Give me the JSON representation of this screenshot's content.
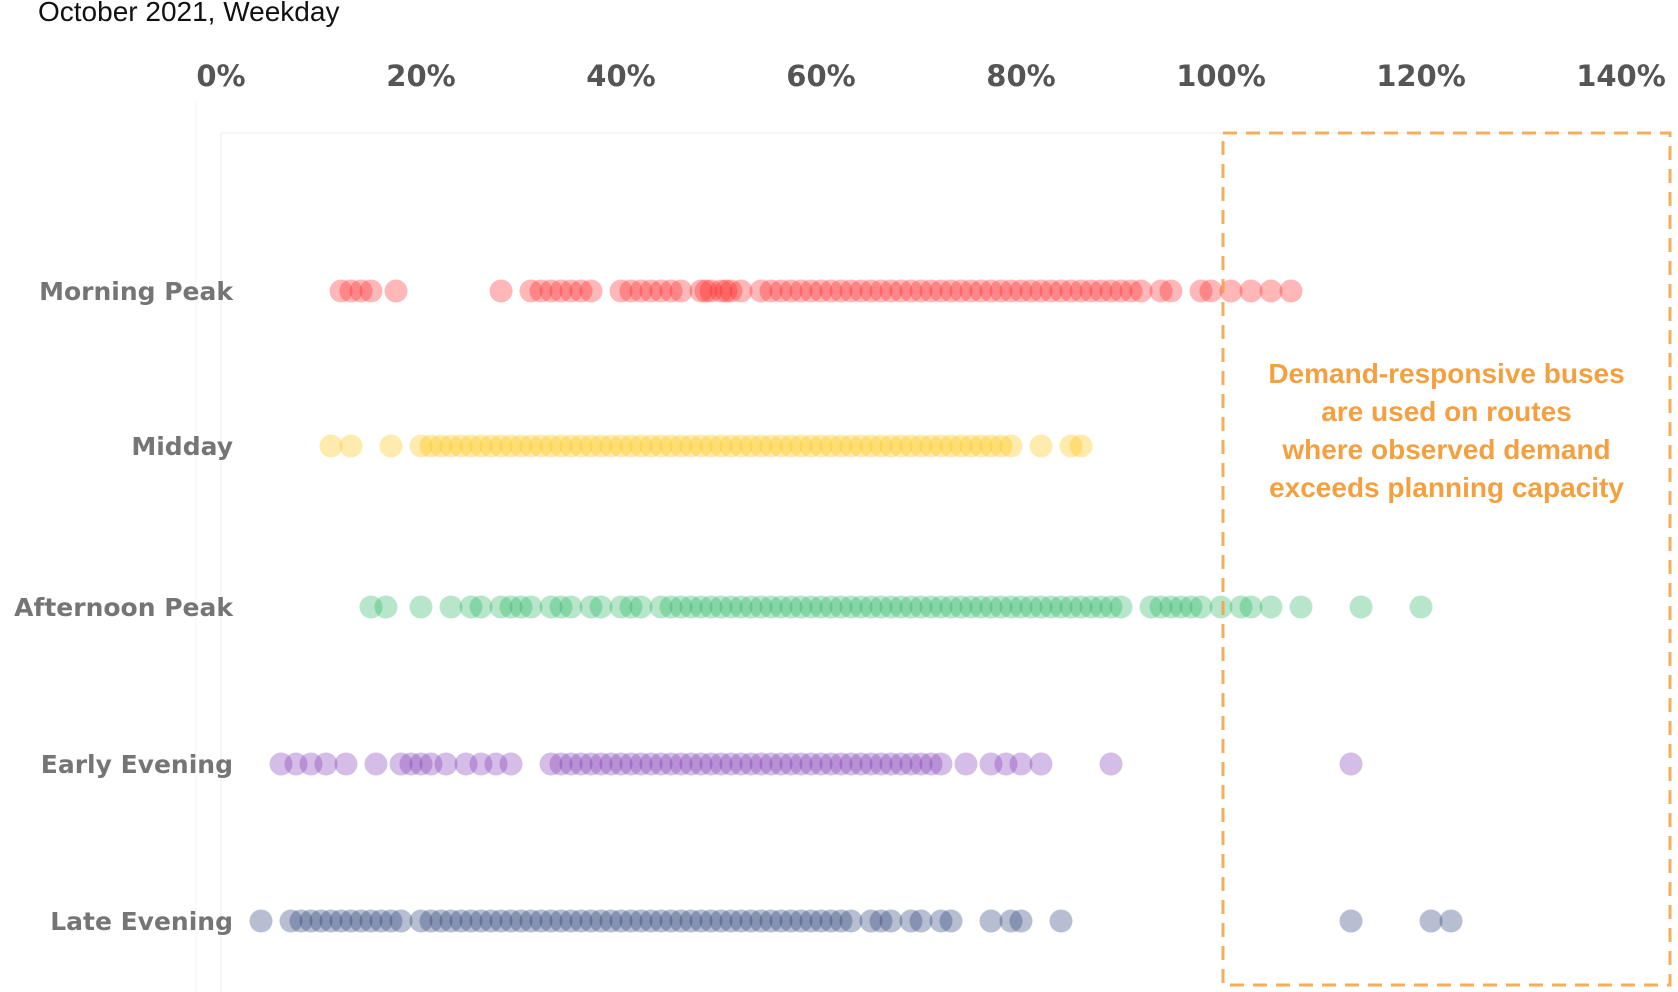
{
  "chart_data": {
    "type": "scatter",
    "subtitle": "October 2021, Weekday",
    "x_ticks": [
      "0%",
      "20%",
      "40%",
      "60%",
      "80%",
      "100%",
      "120%",
      "140%"
    ],
    "xlim": [
      0,
      145
    ],
    "x_axis_position": "top",
    "grid": false,
    "categories": [
      "Morning Peak",
      "Midday",
      "Afternoon Peak",
      "Early Evening",
      "Late Evening"
    ],
    "series": [
      {
        "category": "Morning Peak",
        "color": "#ff1f1f",
        "x": [
          12,
          13,
          14,
          15,
          17.5,
          28,
          31,
          32,
          33,
          34,
          35,
          36,
          37,
          40,
          41,
          42,
          43,
          44,
          45,
          46,
          48,
          48.5,
          49,
          50,
          50.5,
          51,
          52,
          54,
          55,
          56,
          57,
          58,
          59,
          60,
          61,
          62,
          63,
          64,
          65,
          66,
          67,
          68,
          69,
          70,
          71,
          72,
          73,
          74,
          75,
          76,
          77,
          78,
          79,
          80,
          81,
          82,
          83,
          84,
          85,
          86,
          87,
          88,
          89,
          90,
          91,
          92,
          94,
          95,
          98,
          99,
          101,
          103,
          105,
          107
        ]
      },
      {
        "category": "Midday",
        "color": "#ffc000",
        "x": [
          11,
          13,
          17,
          20,
          21,
          22,
          23,
          24,
          25,
          26,
          27,
          28,
          29,
          30,
          31,
          32,
          33,
          34,
          35,
          36,
          37,
          38,
          39,
          40,
          41,
          42,
          43,
          44,
          45,
          46,
          47,
          48,
          49,
          50,
          51,
          52,
          53,
          54,
          55,
          56,
          57,
          58,
          59,
          60,
          61,
          62,
          63,
          64,
          65,
          66,
          67,
          68,
          69,
          70,
          71,
          72,
          73,
          74,
          75,
          76,
          77,
          78,
          79,
          82,
          85,
          86
        ]
      },
      {
        "category": "Afternoon Peak",
        "color": "#1fb05c",
        "x": [
          15,
          16.5,
          20,
          23,
          25,
          26,
          28,
          29,
          30,
          31,
          33,
          34,
          35,
          37,
          38,
          40,
          41,
          42,
          44,
          45,
          46,
          47,
          48,
          49,
          50,
          51,
          52,
          53,
          54,
          55,
          56,
          57,
          58,
          59,
          60,
          61,
          62,
          63,
          64,
          65,
          66,
          67,
          68,
          69,
          70,
          71,
          72,
          73,
          74,
          75,
          76,
          77,
          78,
          79,
          80,
          81,
          82,
          83,
          84,
          85,
          86,
          87,
          88,
          89,
          90,
          93,
          94,
          95,
          96,
          97,
          98,
          100,
          102,
          103,
          105,
          108,
          114,
          120
        ]
      },
      {
        "category": "Early Evening",
        "color": "#7a33b0",
        "x": [
          6,
          7.5,
          9,
          10.5,
          12.5,
          15.5,
          18,
          19,
          20,
          21,
          22.5,
          24.5,
          26,
          27.5,
          29,
          33,
          34,
          35,
          36,
          37,
          38,
          39,
          40,
          41,
          42,
          43,
          44,
          45,
          46,
          47,
          48,
          49,
          50,
          51,
          52,
          53,
          54,
          55,
          56,
          57,
          58,
          59,
          60,
          61,
          62,
          63,
          64,
          65,
          66,
          67,
          68,
          69,
          70,
          71,
          72,
          74.5,
          77,
          78.5,
          80,
          82,
          89,
          113
        ]
      },
      {
        "category": "Late Evening",
        "color": "#1f3670",
        "x": [
          4,
          7,
          8,
          9,
          10,
          11,
          12,
          13,
          14,
          15,
          16,
          17,
          18,
          20,
          21,
          22,
          23,
          24,
          25,
          26,
          27,
          28,
          29,
          30,
          31,
          32,
          33,
          34,
          35,
          36,
          37,
          38,
          39,
          40,
          41,
          42,
          43,
          44,
          45,
          46,
          47,
          48,
          49,
          50,
          51,
          52,
          53,
          54,
          55,
          56,
          57,
          58,
          59,
          60,
          61,
          62,
          63,
          65,
          66,
          67,
          69,
          70,
          72,
          73,
          77,
          79,
          80,
          84,
          113,
          121,
          123
        ]
      }
    ],
    "annotation": {
      "lines": [
        "Demand-responsive buses",
        "are used on routes",
        "where observed demand",
        "exceeds planning capacity"
      ],
      "color": "#f4a040",
      "x_range": [
        100,
        145
      ]
    }
  }
}
